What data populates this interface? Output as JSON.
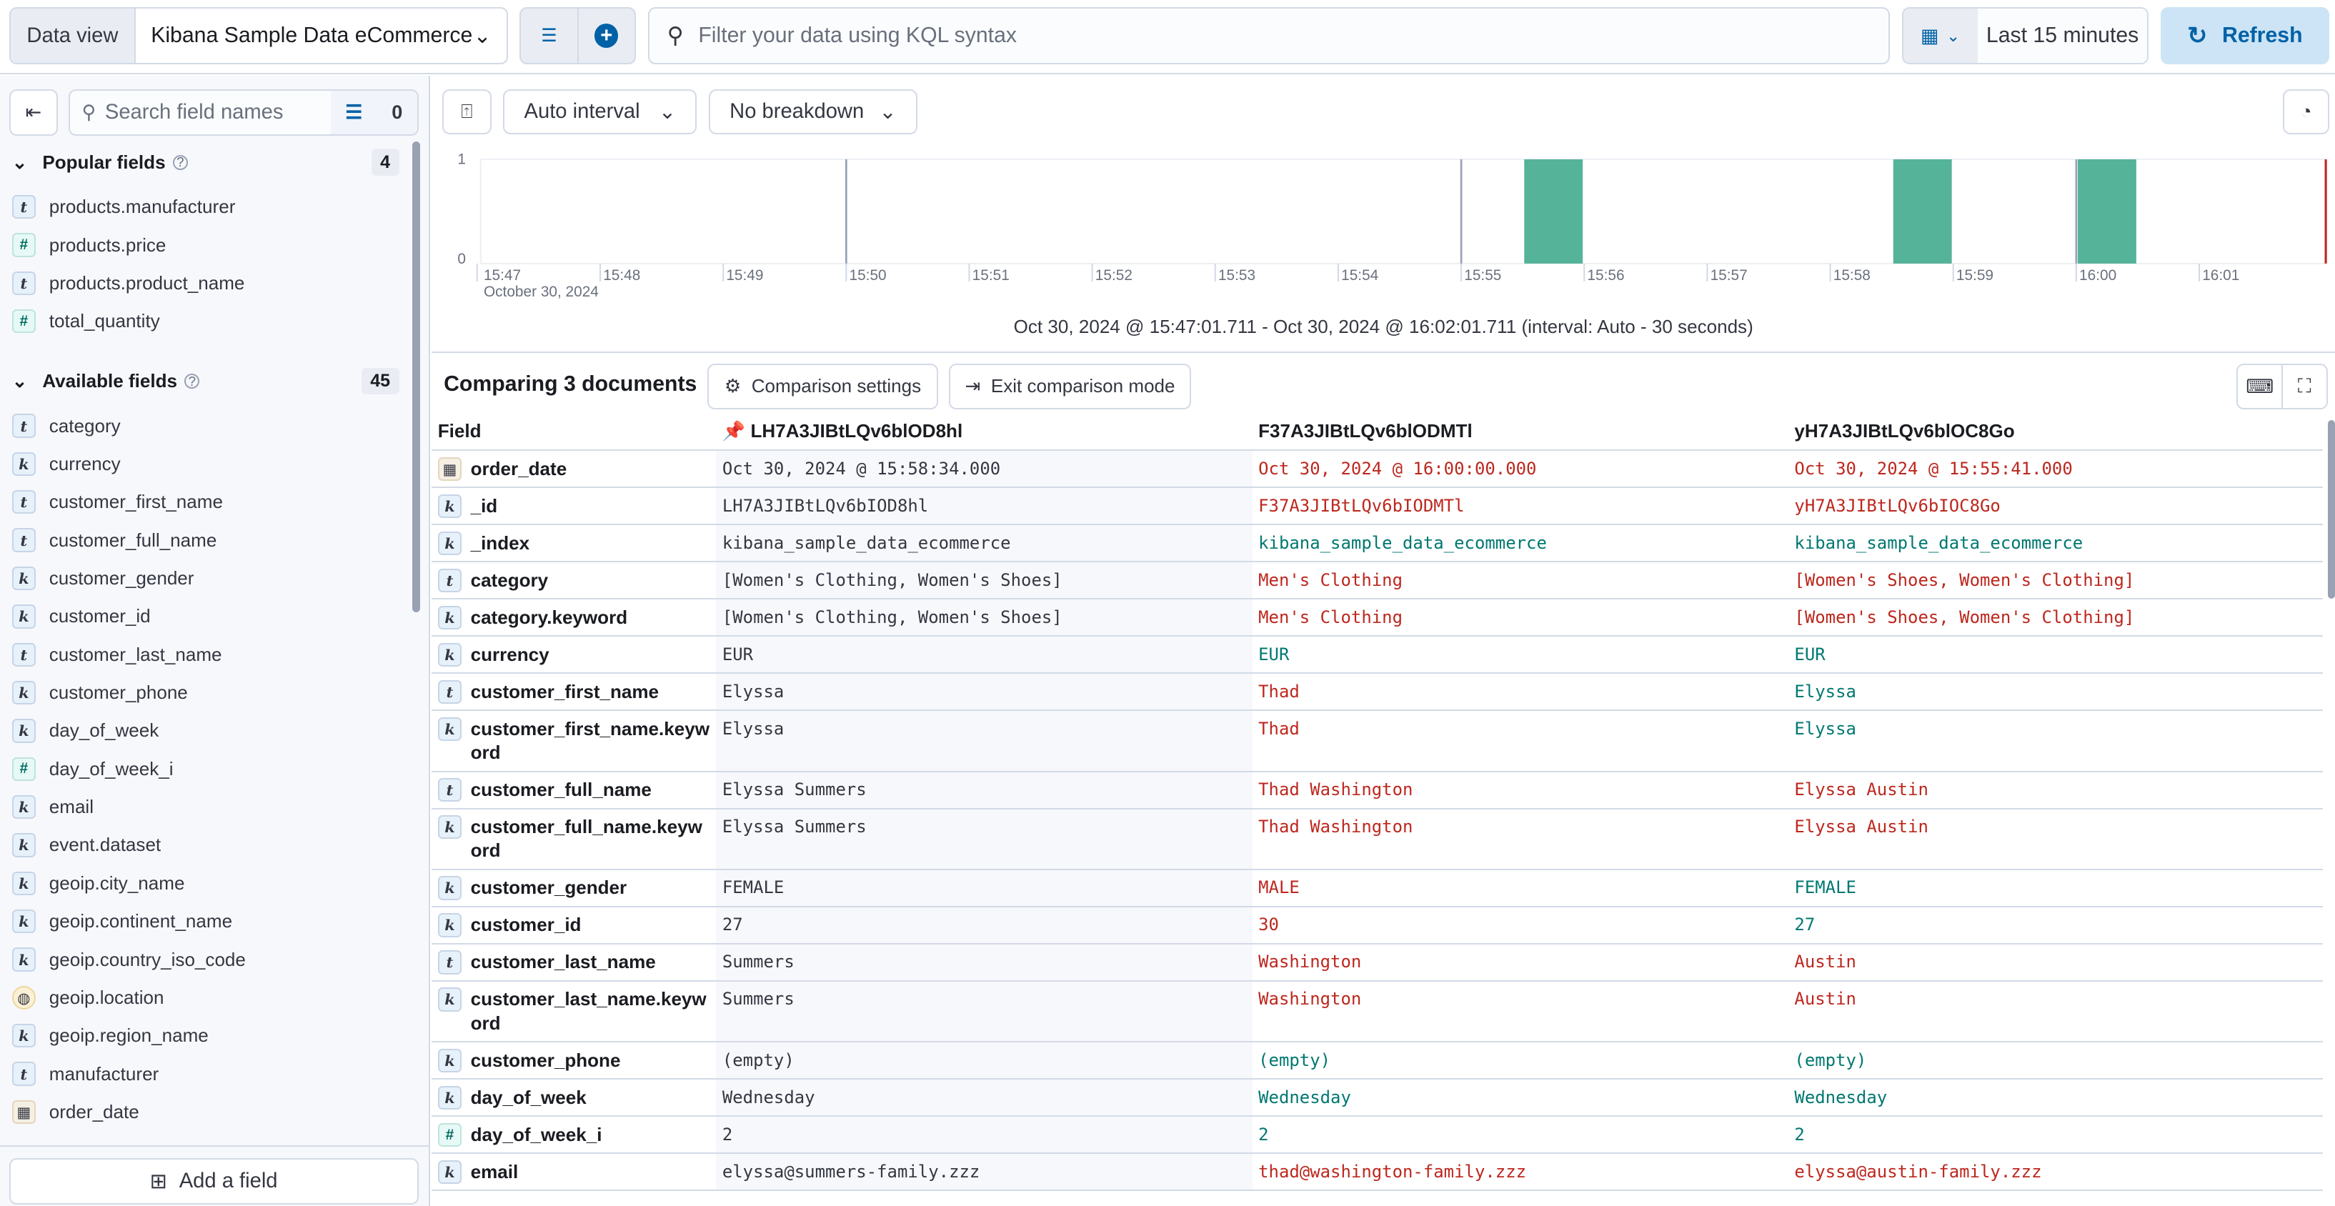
{
  "topbar": {
    "data_view_label": "Data view",
    "data_view_value": "Kibana Sample Data eCommerce",
    "query_placeholder": "Filter your data using KQL syntax",
    "time_range": "Last 15 minutes",
    "refresh_label": "Refresh"
  },
  "sidebar": {
    "search_placeholder": "Search field names",
    "filter_count": "0",
    "popular": {
      "title": "Popular fields",
      "count": "4",
      "items": [
        {
          "name": "products.manufacturer",
          "type": "t"
        },
        {
          "name": "products.price",
          "type": "#"
        },
        {
          "name": "products.product_name",
          "type": "t"
        },
        {
          "name": "total_quantity",
          "type": "#"
        }
      ]
    },
    "available": {
      "title": "Available fields",
      "count": "45",
      "items": [
        {
          "name": "category",
          "type": "t"
        },
        {
          "name": "currency",
          "type": "k"
        },
        {
          "name": "customer_first_name",
          "type": "t"
        },
        {
          "name": "customer_full_name",
          "type": "t"
        },
        {
          "name": "customer_gender",
          "type": "k"
        },
        {
          "name": "customer_id",
          "type": "k"
        },
        {
          "name": "customer_last_name",
          "type": "t"
        },
        {
          "name": "customer_phone",
          "type": "k"
        },
        {
          "name": "day_of_week",
          "type": "k"
        },
        {
          "name": "day_of_week_i",
          "type": "#"
        },
        {
          "name": "email",
          "type": "k"
        },
        {
          "name": "event.dataset",
          "type": "k"
        },
        {
          "name": "geoip.city_name",
          "type": "k"
        },
        {
          "name": "geoip.continent_name",
          "type": "k"
        },
        {
          "name": "geoip.country_iso_code",
          "type": "k"
        },
        {
          "name": "geoip.location",
          "type": "geo"
        },
        {
          "name": "geoip.region_name",
          "type": "k"
        },
        {
          "name": "manufacturer",
          "type": "t"
        },
        {
          "name": "order_date",
          "type": "date"
        }
      ]
    },
    "add_field_label": "Add a field"
  },
  "toolbar": {
    "interval": "Auto interval",
    "breakdown": "No breakdown"
  },
  "chart_data": {
    "type": "bar",
    "x_range": [
      "15:47:01.711",
      "16:02:01.711"
    ],
    "x_ticks": [
      "15:47",
      "15:48",
      "15:49",
      "15:50",
      "15:51",
      "15:52",
      "15:53",
      "15:54",
      "15:55",
      "15:56",
      "15:57",
      "15:58",
      "15:59",
      "16:00",
      "16:01"
    ],
    "x_date_label": "October 30, 2024",
    "y_ticks": [
      "0",
      "1"
    ],
    "ylim": [
      0,
      1
    ],
    "interval_seconds": 30,
    "bars": [
      {
        "start": "15:55:30",
        "count": 1
      },
      {
        "start": "15:58:30",
        "count": 1
      },
      {
        "start": "16:00:00",
        "count": 1
      }
    ],
    "bar_color": "#54b399",
    "now_marker_color": "#bd271e"
  },
  "date_range_text": "Oct 30, 2024 @ 15:47:01.711 - Oct 30, 2024 @ 16:02:01.711 (interval: Auto - 30 seconds)",
  "comparison": {
    "title": "Comparing 3 documents",
    "settings_label": "Comparison settings",
    "exit_label": "Exit comparison mode",
    "columns": [
      "Field",
      "LH7A3JIBtLQv6blOD8hl",
      "F37A3JIBtLQv6blODMTl",
      "yH7A3JIBtLQv6blOC8Go"
    ],
    "colors": {
      "diff": "#bd271e",
      "same": "#007871"
    },
    "rows": [
      {
        "field": "order_date",
        "type": "date",
        "values": [
          "Oct 30, 2024 @ 15:58:34.000",
          "Oct 30, 2024 @ 16:00:00.000",
          "Oct 30, 2024 @ 15:55:41.000"
        ],
        "diff": [
          true,
          true
        ]
      },
      {
        "field": "_id",
        "type": "k",
        "values": [
          "LH7A3JIBtLQv6bIOD8hl",
          "F37A3JIBtLQv6bIODMTl",
          "yH7A3JIBtLQv6bIOC8Go"
        ],
        "diff": [
          true,
          true
        ]
      },
      {
        "field": "_index",
        "type": "k",
        "values": [
          "kibana_sample_data_ecommerce",
          "kibana_sample_data_ecommerce",
          "kibana_sample_data_ecommerce"
        ],
        "diff": [
          false,
          false
        ]
      },
      {
        "field": "category",
        "type": "t",
        "values": [
          "[Women's Clothing, Women's Shoes]",
          "Men's Clothing",
          "[Women's Shoes, Women's Clothing]"
        ],
        "diff": [
          true,
          true
        ]
      },
      {
        "field": "category.keyword",
        "type": "k",
        "values": [
          "[Women's Clothing, Women's Shoes]",
          "Men's Clothing",
          "[Women's Shoes, Women's Clothing]"
        ],
        "diff": [
          true,
          true
        ]
      },
      {
        "field": "currency",
        "type": "k",
        "values": [
          "EUR",
          "EUR",
          "EUR"
        ],
        "diff": [
          false,
          false
        ]
      },
      {
        "field": "customer_first_name",
        "type": "t",
        "values": [
          "Elyssa",
          "Thad",
          "Elyssa"
        ],
        "diff": [
          true,
          false
        ]
      },
      {
        "field": "customer_first_name.keyword",
        "type": "k",
        "values": [
          "Elyssa",
          "Thad",
          "Elyssa"
        ],
        "diff": [
          true,
          false
        ]
      },
      {
        "field": "customer_full_name",
        "type": "t",
        "values": [
          "Elyssa Summers",
          "Thad Washington",
          "Elyssa Austin"
        ],
        "diff": [
          true,
          true
        ]
      },
      {
        "field": "customer_full_name.keyword",
        "type": "k",
        "values": [
          "Elyssa Summers",
          "Thad Washington",
          "Elyssa Austin"
        ],
        "diff": [
          true,
          true
        ]
      },
      {
        "field": "customer_gender",
        "type": "k",
        "values": [
          "FEMALE",
          "MALE",
          "FEMALE"
        ],
        "diff": [
          true,
          false
        ]
      },
      {
        "field": "customer_id",
        "type": "k",
        "values": [
          "27",
          "30",
          "27"
        ],
        "diff": [
          true,
          false
        ]
      },
      {
        "field": "customer_last_name",
        "type": "t",
        "values": [
          "Summers",
          "Washington",
          "Austin"
        ],
        "diff": [
          true,
          true
        ]
      },
      {
        "field": "customer_last_name.keyword",
        "type": "k",
        "values": [
          "Summers",
          "Washington",
          "Austin"
        ],
        "diff": [
          true,
          true
        ]
      },
      {
        "field": "customer_phone",
        "type": "k",
        "values": [
          "(empty)",
          "(empty)",
          "(empty)"
        ],
        "diff": [
          false,
          false
        ]
      },
      {
        "field": "day_of_week",
        "type": "k",
        "values": [
          "Wednesday",
          "Wednesday",
          "Wednesday"
        ],
        "diff": [
          false,
          false
        ]
      },
      {
        "field": "day_of_week_i",
        "type": "#",
        "values": [
          "2",
          "2",
          "2"
        ],
        "diff": [
          false,
          false
        ]
      },
      {
        "field": "email",
        "type": "k",
        "values": [
          "elyssa@summers-family.zzz",
          "thad@washington-family.zzz",
          "elyssa@austin-family.zzz"
        ],
        "diff": [
          true,
          true
        ]
      }
    ]
  }
}
